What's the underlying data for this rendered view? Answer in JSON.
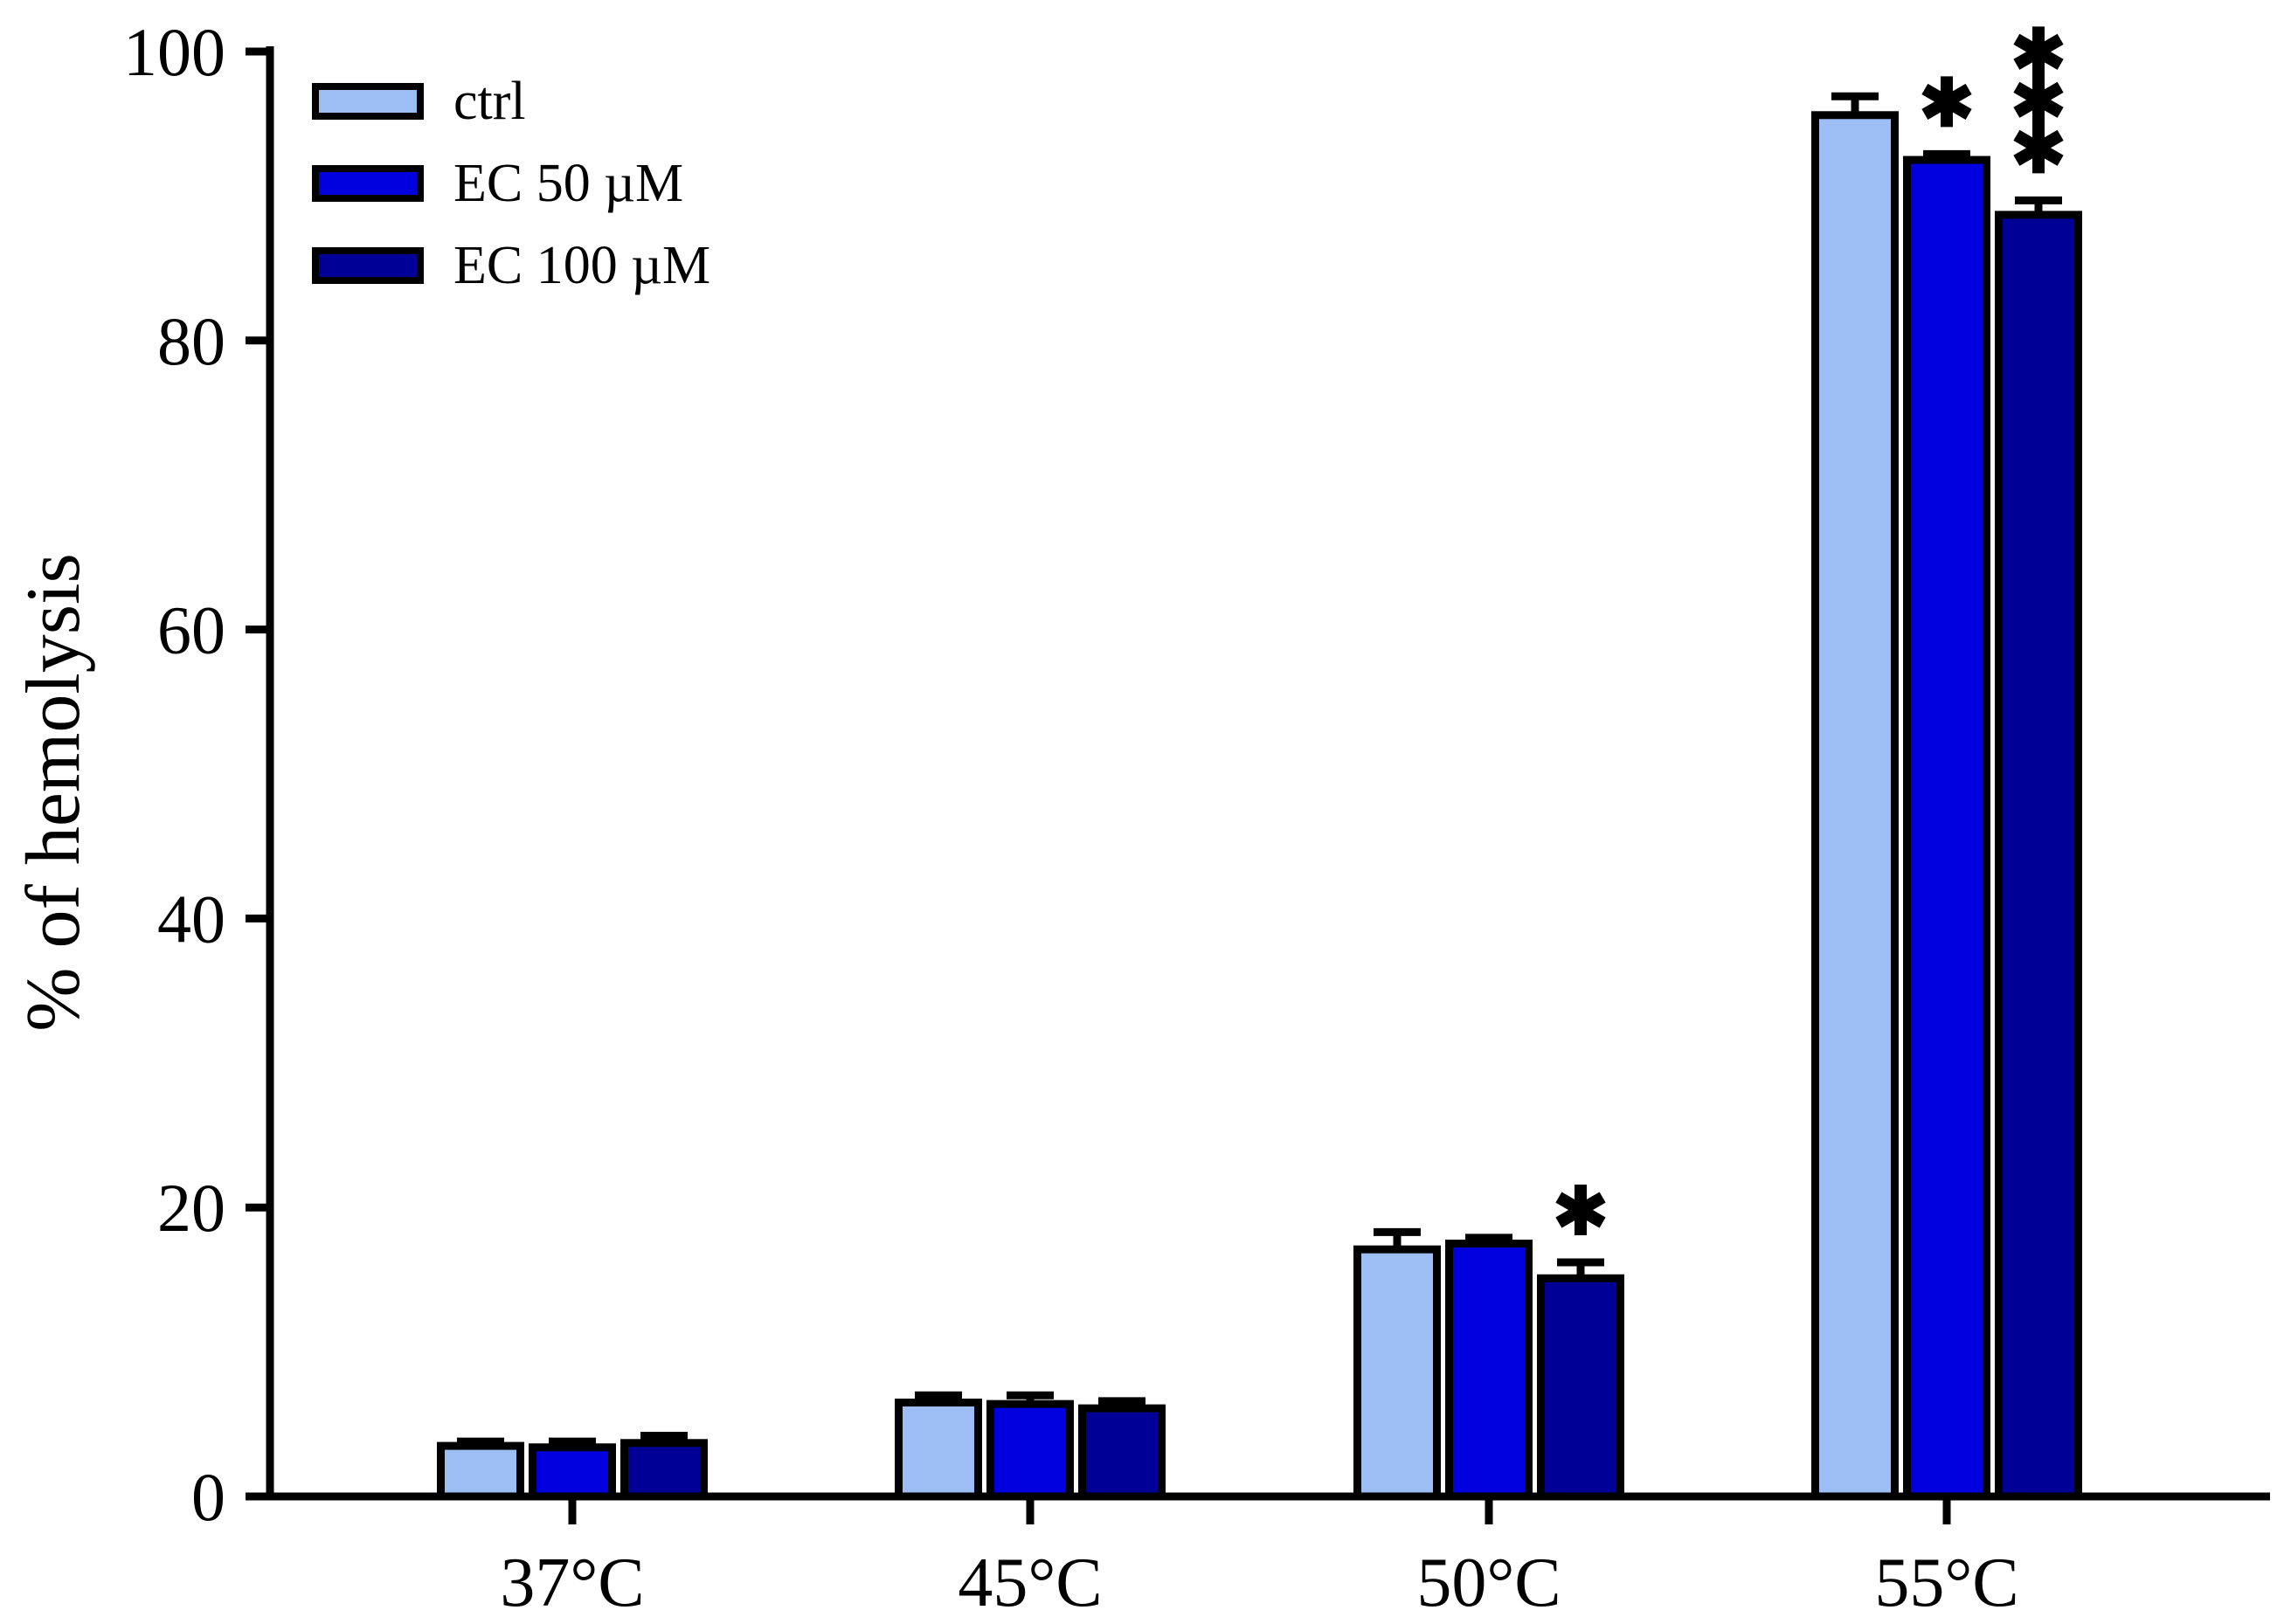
{
  "chart_data": {
    "type": "bar",
    "title": "",
    "xlabel": "",
    "ylabel": "% of hemolysis",
    "ylim": [
      0,
      100
    ],
    "yticks": [
      0,
      20,
      40,
      60,
      80,
      100
    ],
    "grid": false,
    "legend_position": "top-left",
    "ink_color": "#000000",
    "background_color": "#ffffff",
    "categories": [
      "37°C",
      "45°C",
      "50°C",
      "55°C"
    ],
    "series": [
      {
        "name": "ctrl",
        "color": "#9DBDF5",
        "values": [
          3.5,
          6.5,
          17.1,
          95.6
        ],
        "errors": [
          0.3,
          0.5,
          1.2,
          1.3
        ]
      },
      {
        "name": "EC 50 µM",
        "color": "#0000DF",
        "values": [
          3.4,
          6.4,
          17.5,
          92.5
        ],
        "errors": [
          0.4,
          0.6,
          0.4,
          0.4
        ]
      },
      {
        "name": "EC 100 µM",
        "color": "#000096",
        "values": [
          3.7,
          6.1,
          15.1,
          88.7
        ],
        "errors": [
          0.5,
          0.5,
          1.1,
          1.0
        ]
      }
    ],
    "annotations": [
      {
        "text": "*",
        "category": "50°C",
        "series": "EC 100 µM"
      },
      {
        "text": "*",
        "category": "55°C",
        "series": "EC 50 µM"
      },
      {
        "text": "***",
        "category": "55°C",
        "series": "EC 100 µM"
      }
    ]
  }
}
